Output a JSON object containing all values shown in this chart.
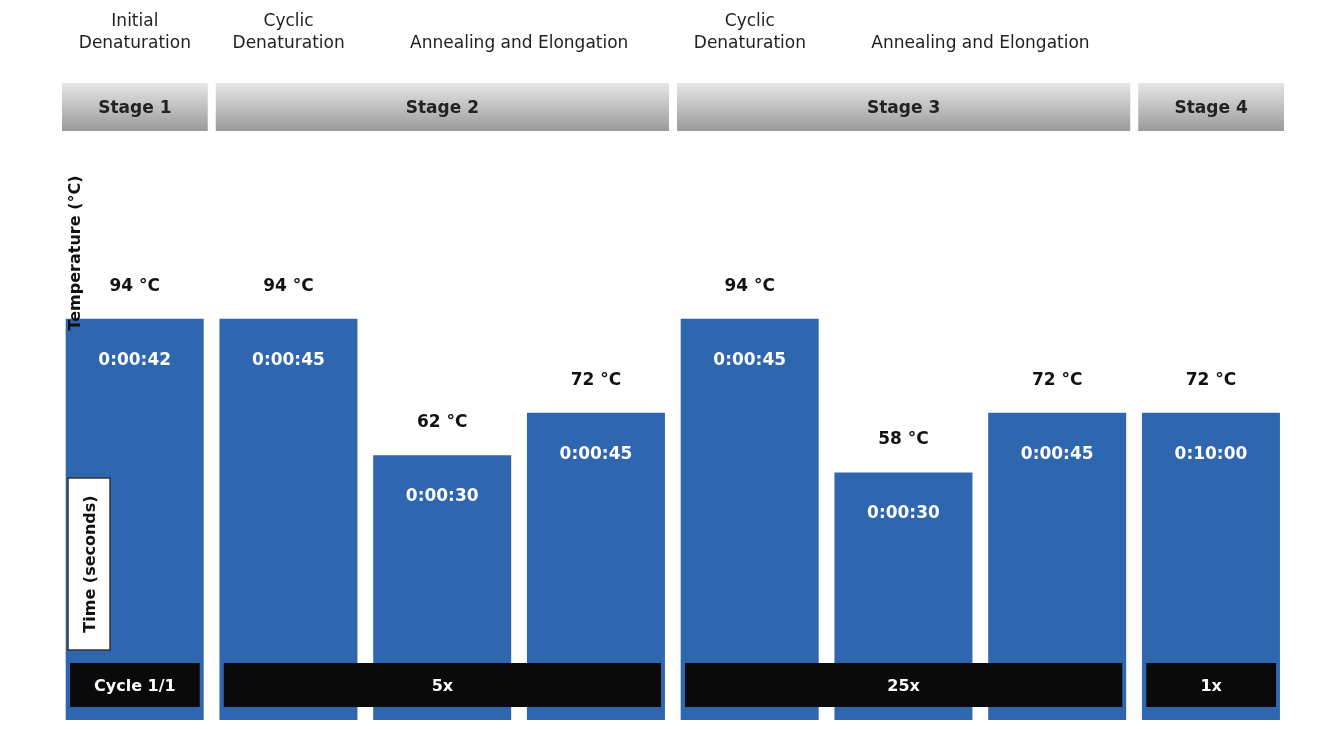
{
  "chart_data": {
    "type": "bar",
    "categories": [
      "Initial Denaturation",
      "Cyclic Denaturation",
      "Annealing and Elongation",
      null,
      "Cyclic Denaturation",
      "Annealing and Elongation",
      null,
      null
    ],
    "values": [
      94,
      94,
      62,
      72,
      94,
      58,
      72,
      72
    ],
    "value_labels": [
      "94 °C",
      "94 °C",
      "62 °C",
      "72 °C",
      "94 °C",
      "58 °C",
      "72 °C",
      "72 °C"
    ],
    "color": "#2f66b0",
    "ylabel": "Temperature (°C)",
    "annotations": [
      "Stage 1",
      "Stage 2",
      "Stage 3",
      "Stage 4",
      "Cycle 1/1",
      "5x",
      "25x",
      "1x",
      "0:00:42",
      "0:00:45",
      "0:00:30",
      "0:00:45",
      "0:00:45",
      "0:00:30",
      "0:00:45",
      "0:10:00",
      "Time (seconds)"
    ],
    "grid": false,
    "legend": false
  }
}
